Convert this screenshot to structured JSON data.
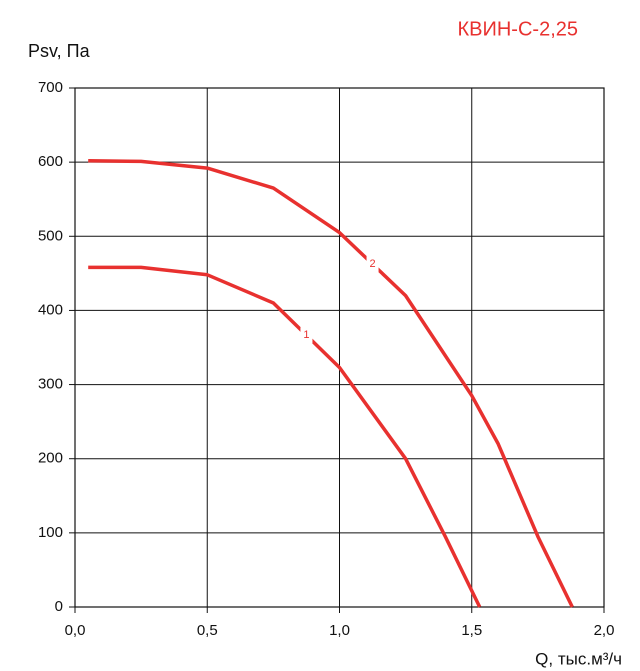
{
  "chart_data": {
    "type": "line",
    "title": "КВИН-С-2,25",
    "y_label": "Psv, Па",
    "x_label": "Q, тыс.м³/ч",
    "series": [
      {
        "name": "1",
        "color": "#e8312f",
        "x": [
          0.05,
          0.25,
          0.5,
          0.75,
          1.0,
          1.25,
          1.4,
          1.53
        ],
        "values": [
          458,
          458,
          448,
          410,
          323,
          200,
          95,
          0
        ]
      },
      {
        "name": "2",
        "color": "#e8312f",
        "x": [
          0.05,
          0.25,
          0.5,
          0.75,
          1.0,
          1.25,
          1.5,
          1.6,
          1.75,
          1.88
        ],
        "values": [
          602,
          601,
          592,
          565,
          505,
          420,
          285,
          220,
          95,
          0
        ]
      }
    ],
    "xlim": [
      0,
      2
    ],
    "ylim": [
      0,
      700
    ],
    "xticks": [
      {
        "value": 0,
        "label": "0,0"
      },
      {
        "value": 0.5,
        "label": "0,5"
      },
      {
        "value": 1,
        "label": "1,0"
      },
      {
        "value": 1.5,
        "label": "1,5"
      },
      {
        "value": 2,
        "label": "2,0"
      }
    ],
    "yticks": [
      0,
      100,
      200,
      300,
      400,
      500,
      600,
      700
    ],
    "grid": true
  }
}
